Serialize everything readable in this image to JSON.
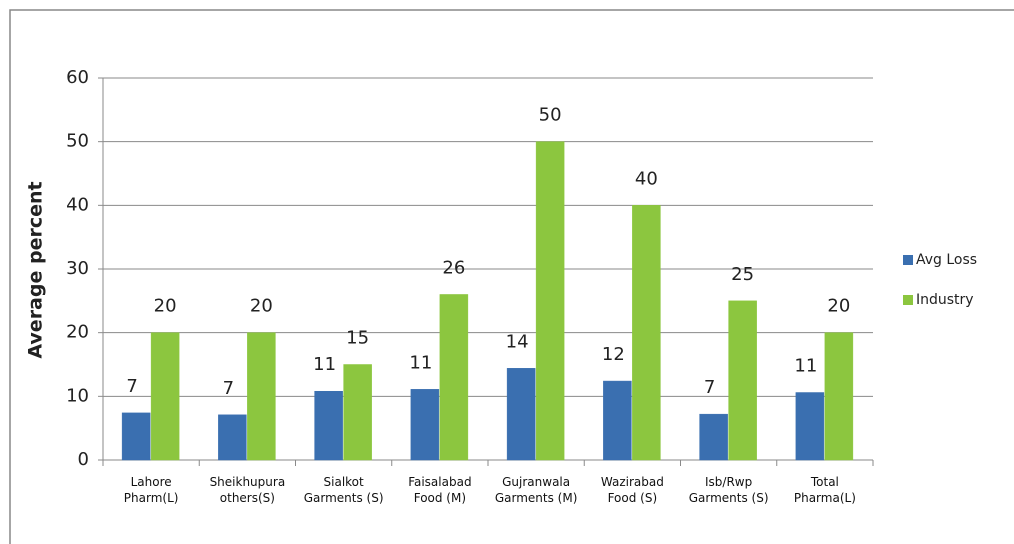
{
  "chart_data": {
    "type": "bar",
    "y_label": "Average percent",
    "categories": [
      "Lahore Pharm(L)",
      "Sheikhupura others(S)",
      "Sialkot Garments (S)",
      "Faisalabad Food (M)",
      "Gujranwala Garments (M)",
      "Wazirabad Food (S)",
      "Isb/Rwp Garments (S)",
      "Total Pharma(L)"
    ],
    "series": [
      {
        "name": "Avg Loss",
        "color": "#3a6fb0",
        "values": [
          7.4,
          7.1,
          10.8,
          11.1,
          14.4,
          12.4,
          7.2,
          10.6
        ],
        "value_labels": [
          "7",
          "7",
          "11",
          "11",
          "14",
          "12",
          "7",
          "11"
        ]
      },
      {
        "name": "Industry",
        "color": "#8cc63f",
        "values": [
          20,
          20,
          15,
          26,
          50,
          40,
          25,
          20
        ]
      }
    ],
    "ylim": [
      0,
      60
    ],
    "yticks": [
      0,
      10,
      20,
      30,
      40,
      50,
      60
    ],
    "grid": true,
    "legend": "right"
  }
}
